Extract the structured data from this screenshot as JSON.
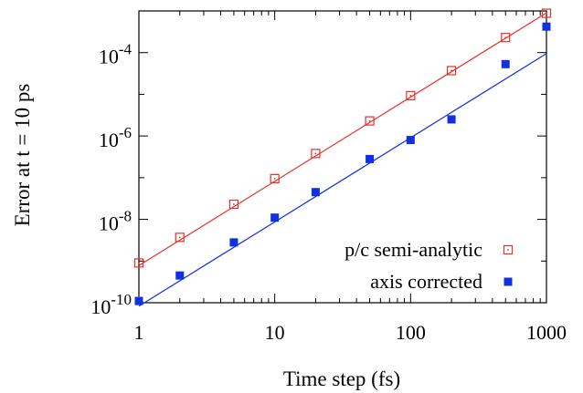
{
  "chart_data": {
    "type": "scatter",
    "title": "",
    "xlabel": "Time step (fs)",
    "ylabel": "Error at t = 10 ps",
    "x_scale": "log",
    "y_scale": "log",
    "xlim": [
      1,
      1000
    ],
    "ylim": [
      1e-10,
      0.001
    ],
    "x_ticks": [
      {
        "value": 1,
        "label": "1"
      },
      {
        "value": 10,
        "label": "10"
      },
      {
        "value": 100,
        "label": "100"
      },
      {
        "value": 1000,
        "label": "1000"
      }
    ],
    "y_ticks": [
      {
        "value": 1e-10,
        "base": "10",
        "exp": "-10"
      },
      {
        "value": 1e-08,
        "base": "10",
        "exp": "-8"
      },
      {
        "value": 1e-06,
        "base": "10",
        "exp": "-6"
      },
      {
        "value": 0.0001,
        "base": "10",
        "exp": "-4"
      }
    ],
    "grid": false,
    "legend_position": "bottom-right",
    "series": [
      {
        "name": "p/c semi-analytic",
        "marker": "open-square",
        "color": "#e8302a",
        "x": [
          1,
          2,
          5,
          10,
          20,
          50,
          100,
          200,
          500,
          1000
        ],
        "y": [
          9e-10,
          3.7e-09,
          2.3e-08,
          9.5e-08,
          3.8e-07,
          2.3e-06,
          9.3e-06,
          3.7e-05,
          0.00023,
          0.00088
        ],
        "fit_line": {
          "x": [
            0.93,
            1000
          ],
          "y": [
            7.8e-10,
            0.0009
          ]
        }
      },
      {
        "name": "axis corrected",
        "marker": "filled-square",
        "color": "#1130e0",
        "x": [
          1,
          2,
          5,
          10,
          20,
          50,
          100,
          200,
          500,
          1000
        ],
        "y": [
          1.1e-10,
          4.5e-10,
          2.8e-09,
          1.1e-08,
          4.5e-08,
          2.8e-07,
          8e-07,
          2.5e-06,
          5.3e-05,
          0.00042
        ],
        "fit_line": {
          "x": [
            0.93,
            1000
          ],
          "y": [
            8.3e-11,
            9.5e-05
          ]
        }
      }
    ]
  }
}
